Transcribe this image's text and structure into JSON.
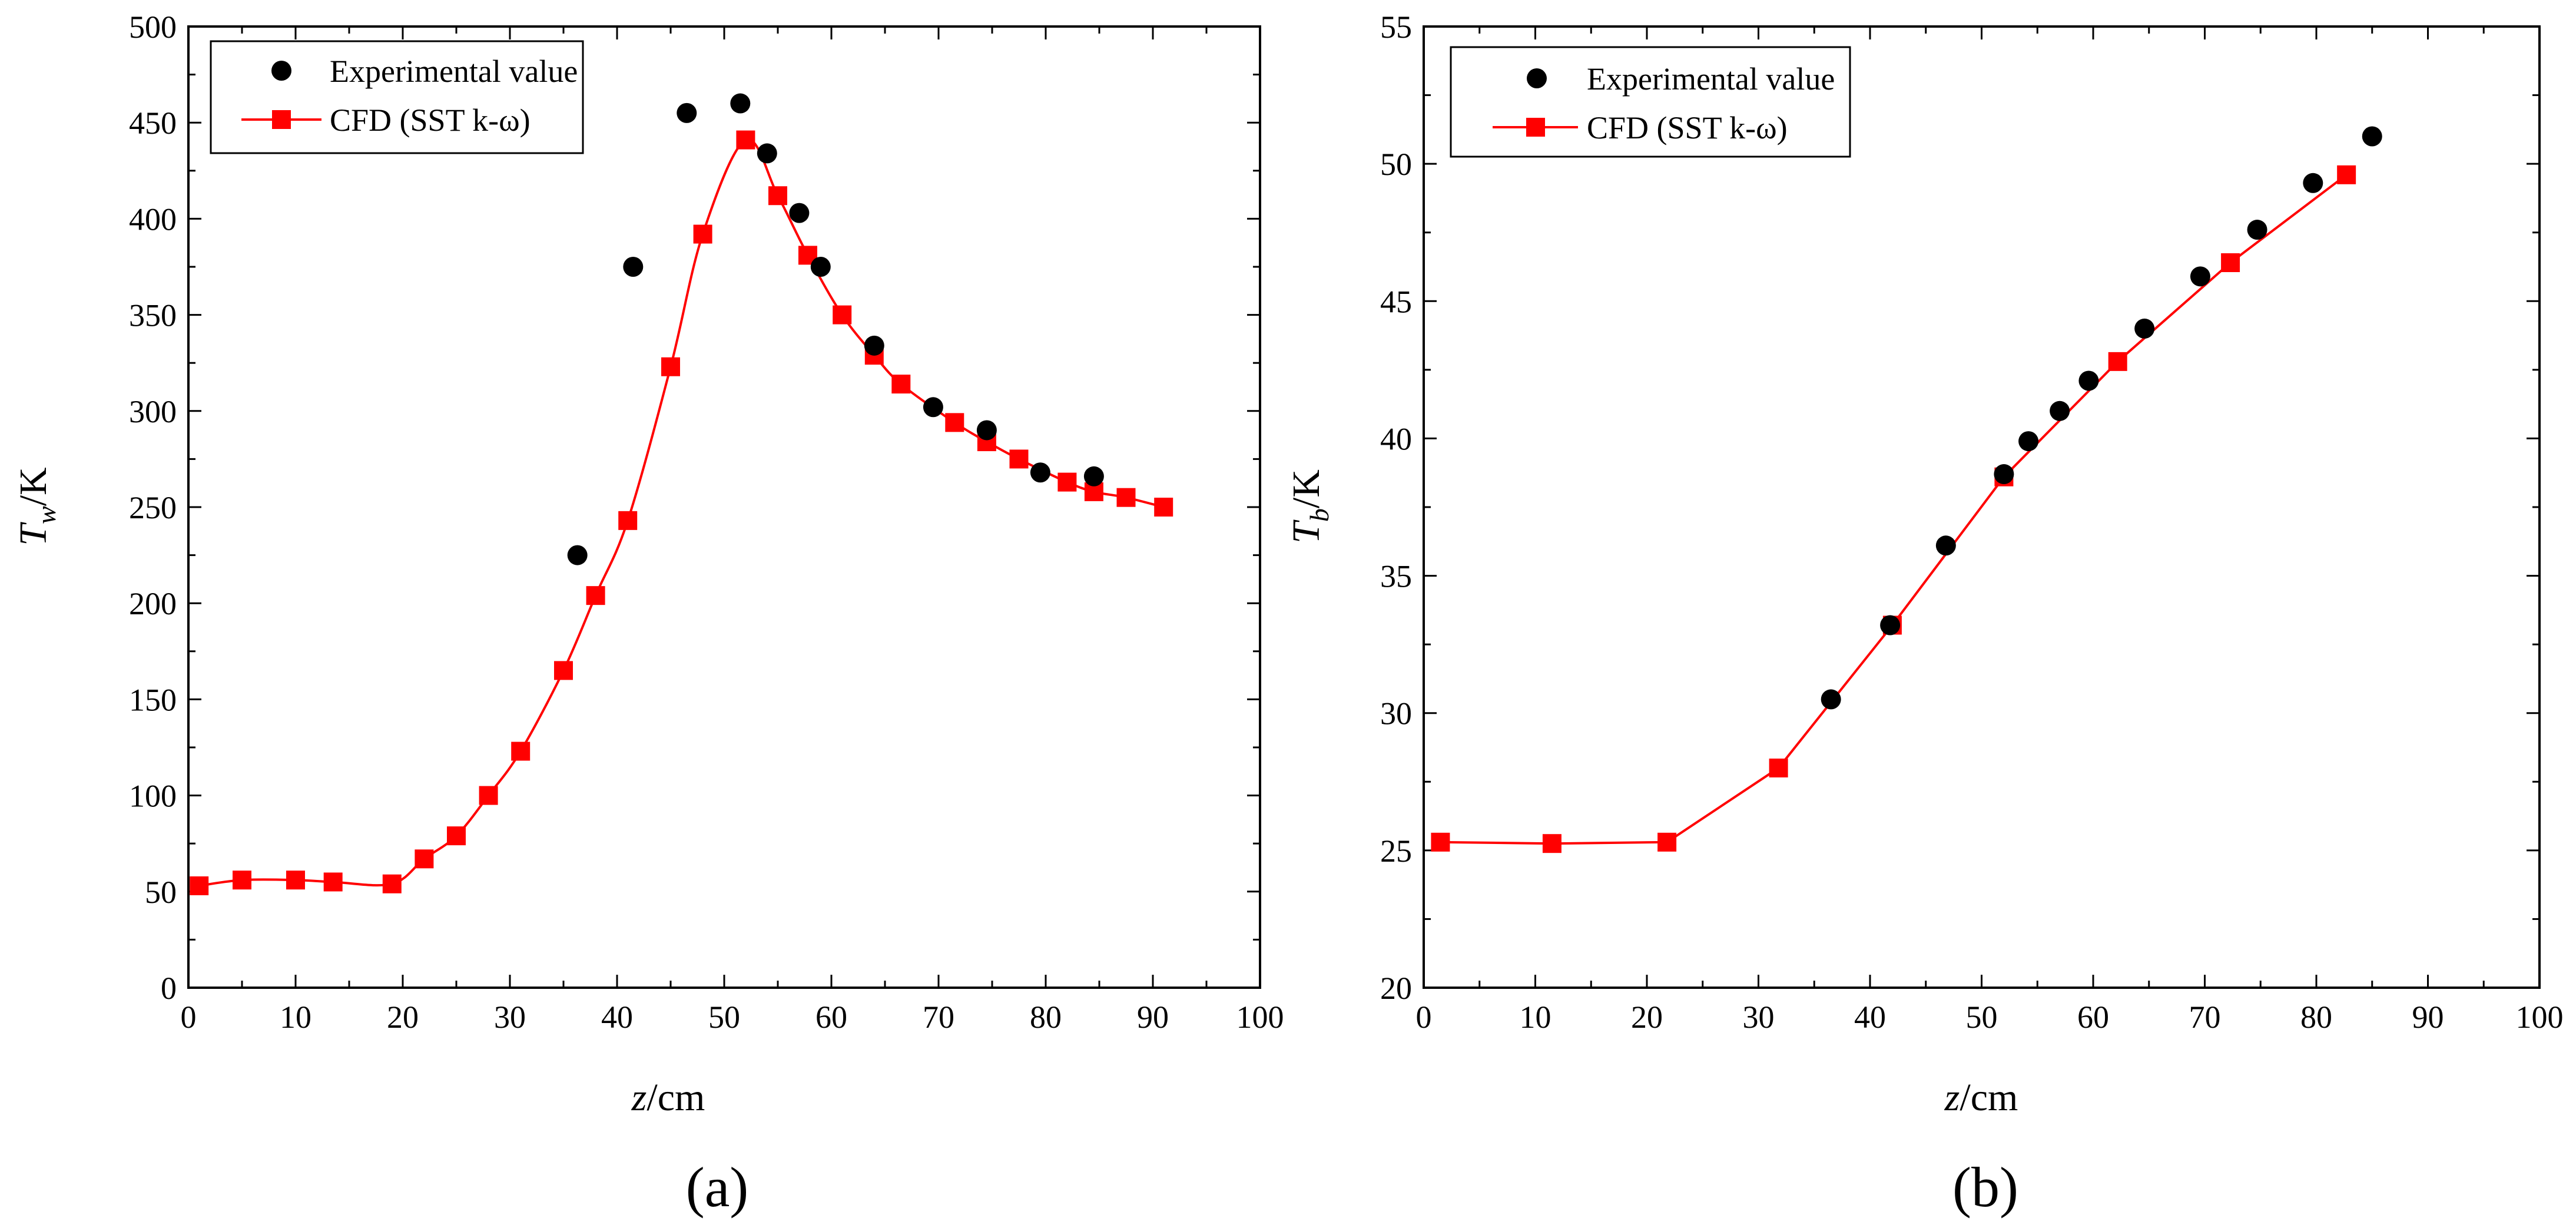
{
  "chart_data": [
    {
      "type": "scatter+line",
      "panel_label": "(a)",
      "xlabel_var": "z",
      "xlabel_unit": "/cm",
      "ylabel_var": "T",
      "ylabel_sub": "w",
      "ylabel_unit": "/K",
      "xlim": [
        0,
        100
      ],
      "ylim": [
        0,
        500
      ],
      "xticks": [
        0,
        10,
        20,
        30,
        40,
        50,
        60,
        70,
        80,
        90,
        100
      ],
      "yticks": [
        0,
        50,
        100,
        150,
        200,
        250,
        300,
        350,
        400,
        450,
        500
      ],
      "legend_position": "top-left",
      "series": [
        {
          "name": "Experimental value",
          "marker": "circle",
          "color": "#000000",
          "x": [
            36.3,
            41.5,
            46.5,
            51.5,
            54,
            57,
            59,
            64,
            69.5,
            74.5,
            79.5,
            84.5
          ],
          "y": [
            225,
            375,
            455,
            460,
            434,
            403,
            375,
            334,
            302,
            290,
            268,
            266
          ]
        },
        {
          "name": "CFD (SST k-ω)",
          "marker": "square",
          "color": "#ff0000",
          "smooth": true,
          "x": [
            1,
            5,
            10,
            13.5,
            19,
            22,
            25,
            28,
            31,
            35,
            38,
            41,
            45,
            48,
            52,
            55,
            57.8,
            61,
            64,
            66.5,
            71.5,
            74.5,
            77.5,
            82,
            84.5,
            87.5,
            91
          ],
          "y": [
            53,
            56,
            56,
            55,
            54,
            67,
            79,
            100,
            123,
            165,
            204,
            243,
            323,
            392,
            441,
            412,
            381,
            350,
            329,
            314,
            294,
            284,
            275,
            263,
            258,
            255,
            250
          ]
        }
      ]
    },
    {
      "type": "scatter+line",
      "panel_label": "(b)",
      "xlabel_var": "z",
      "xlabel_unit": "/cm",
      "ylabel_var": "T",
      "ylabel_sub": "b",
      "ylabel_unit": "/K",
      "xlim": [
        0,
        100
      ],
      "ylim": [
        20,
        55
      ],
      "xticks": [
        0,
        10,
        20,
        30,
        40,
        50,
        60,
        70,
        80,
        90,
        100
      ],
      "yticks": [
        20,
        25,
        30,
        35,
        40,
        45,
        50,
        55
      ],
      "legend_position": "top-left",
      "series": [
        {
          "name": "Experimental value",
          "marker": "circle",
          "color": "#000000",
          "x": [
            36.5,
            41.8,
            46.8,
            52,
            54.2,
            57,
            59.6,
            64.6,
            69.6,
            74.7,
            79.7,
            85
          ],
          "y": [
            30.5,
            33.2,
            36.1,
            38.7,
            39.9,
            41.0,
            42.1,
            44.0,
            45.9,
            47.6,
            49.3,
            51.0
          ]
        },
        {
          "name": "CFD (SST k-ω)",
          "marker": "square",
          "color": "#ff0000",
          "smooth": false,
          "x": [
            1.5,
            11.5,
            21.8,
            31.8,
            42,
            52,
            62.2,
            72.3,
            82.7
          ],
          "y": [
            25.3,
            25.25,
            25.3,
            28.0,
            33.2,
            38.6,
            42.8,
            46.4,
            49.6
          ]
        }
      ]
    }
  ]
}
